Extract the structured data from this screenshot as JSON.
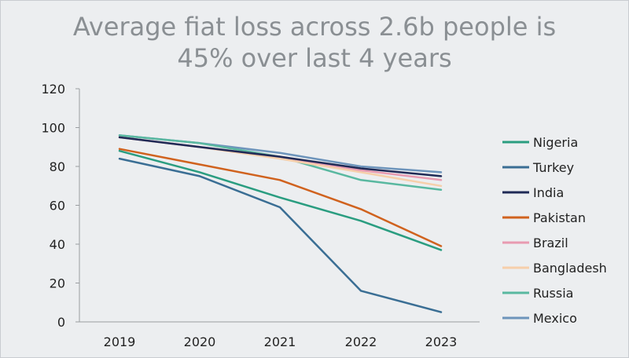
{
  "chart_data": {
    "type": "line",
    "title_line1": "Average fiat loss across 2.6b people is",
    "title_line2": "45% over last 4 years",
    "xlabel": "",
    "ylabel": "",
    "x": [
      "2019",
      "2020",
      "2021",
      "2022",
      "2023"
    ],
    "ylim": [
      0,
      120
    ],
    "yticks": [
      0,
      20,
      40,
      60,
      80,
      100,
      120
    ],
    "grid": false,
    "legend_position": "right",
    "series": [
      {
        "name": "Nigeria",
        "color": "#2a9d80",
        "values": [
          88,
          77,
          64,
          52,
          37
        ]
      },
      {
        "name": "Turkey",
        "color": "#3a6e94",
        "values": [
          84,
          75,
          59,
          16,
          5
        ]
      },
      {
        "name": "India",
        "color": "#1f2a56",
        "values": [
          95,
          90,
          85,
          79,
          75
        ]
      },
      {
        "name": "Pakistan",
        "color": "#d0621e",
        "values": [
          89,
          81,
          73,
          58,
          39
        ]
      },
      {
        "name": "Brazil",
        "color": "#e89bb1",
        "values": [
          95,
          90,
          85,
          78,
          73
        ]
      },
      {
        "name": "Bangladesh",
        "color": "#f6cfaa",
        "values": [
          95,
          90,
          84,
          77,
          70
        ]
      },
      {
        "name": "Russia",
        "color": "#59b8a0",
        "values": [
          96,
          92,
          85,
          73,
          68
        ]
      },
      {
        "name": "Mexico",
        "color": "#6d94bb",
        "values": [
          96,
          92,
          87,
          80,
          77
        ]
      }
    ]
  }
}
